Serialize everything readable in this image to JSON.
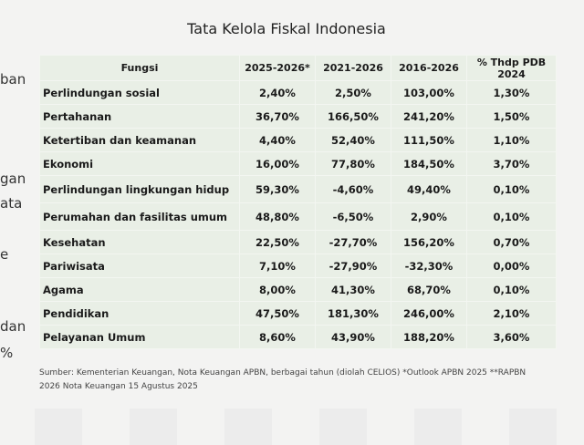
{
  "title": "Tata Kelola Fiskal Indonesia",
  "left_fragments": [
    "ban",
    "gan",
    "ata",
    "e",
    "dan",
    "%"
  ],
  "table": {
    "headers": [
      "Fungsi",
      "2025-2026*",
      "2021-2026",
      "2016-2026",
      "% Thdp PDB 2024"
    ],
    "rows": [
      [
        "Perlindungan sosial",
        "2,40%",
        "2,50%",
        "103,00%",
        "1,30%"
      ],
      [
        "Pertahanan",
        "36,70%",
        "166,50%",
        "241,20%",
        "1,50%"
      ],
      [
        "Ketertiban dan keamanan",
        "4,40%",
        "52,40%",
        "111,50%",
        "1,10%"
      ],
      [
        "Ekonomi",
        "16,00%",
        "77,80%",
        "184,50%",
        "3,70%"
      ],
      [
        "Perlindungan lingkungan hidup",
        "59,30%",
        "-4,60%",
        "49,40%",
        "0,10%"
      ],
      [
        "Perumahan dan fasilitas umum",
        "48,80%",
        "-6,50%",
        "2,90%",
        "0,10%"
      ],
      [
        "Kesehatan",
        "22,50%",
        "-27,70%",
        "156,20%",
        "0,70%"
      ],
      [
        "Pariwisata",
        "7,10%",
        "-27,90%",
        "-32,30%",
        "0,00%"
      ],
      [
        "Agama",
        "8,00%",
        "41,30%",
        "68,70%",
        "0,10%"
      ],
      [
        "Pendidikan",
        "47,50%",
        "181,30%",
        "246,00%",
        "2,10%"
      ],
      [
        "Pelayanan Umum",
        "8,60%",
        "43,90%",
        "188,20%",
        "3,60%"
      ]
    ]
  },
  "source": "Sumber: Kementerian Keuangan, Nota Keuangan APBN, berbagai tahun (diolah CELIOS) *Outlook APBN 2025 **RAPBN 2026 Nota Keuangan 15 Agustus 2025"
}
